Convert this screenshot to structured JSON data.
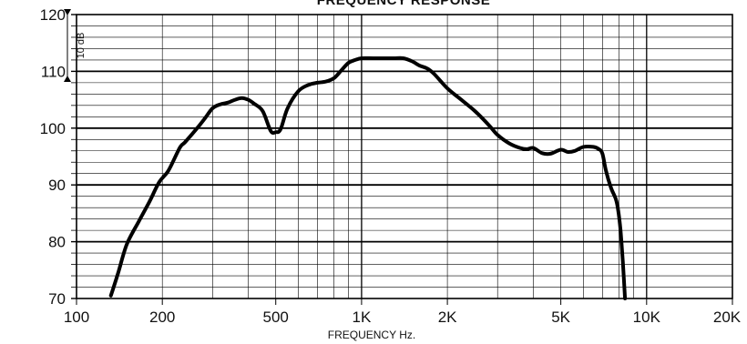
{
  "chart_data": {
    "type": "line",
    "title": "FREQUENCY RESPONSE",
    "xlabel": "FREQUENCY  Hz.",
    "ylabel": "",
    "x_scale": "log",
    "xlim": [
      100,
      20000
    ],
    "ylim": [
      70,
      120
    ],
    "x_ticks": [
      100,
      200,
      500,
      1000,
      2000,
      5000,
      10000,
      20000
    ],
    "x_tick_labels": [
      "100",
      "200",
      "500",
      "1K",
      "2K",
      "5K",
      "10K",
      "20K"
    ],
    "y_ticks": [
      70,
      80,
      90,
      100,
      110,
      120
    ],
    "y_tick_labels": [
      "70",
      "80",
      "90",
      "100",
      "110",
      "120"
    ],
    "scale_marker": "10 dB",
    "grid": true,
    "series": [
      {
        "x": [
          132,
          140,
          150,
          165,
          180,
          195,
          210,
          230,
          240,
          260,
          280,
          300,
          320,
          340,
          360,
          380,
          400,
          420,
          450,
          480,
          500,
          520,
          550,
          600,
          650,
          700,
          750,
          800,
          850,
          900,
          950,
          1000,
          1100,
          1200,
          1300,
          1400,
          1500,
          1600,
          1700,
          1800,
          2000,
          2200,
          2500,
          2800,
          3000,
          3300,
          3600,
          3800,
          4000,
          4300,
          4600,
          5000,
          5300,
          5600,
          6000,
          6500,
          6800,
          7000,
          7200,
          7500,
          7800,
          7950,
          8100,
          8250,
          8400
        ],
        "y": [
          70.5,
          74.5,
          79.5,
          83.5,
          87.0,
          90.5,
          92.5,
          96.5,
          97.5,
          99.5,
          101.5,
          103.5,
          104.2,
          104.5,
          105.0,
          105.3,
          105.0,
          104.3,
          103.0,
          99.5,
          99.3,
          99.8,
          103.5,
          106.5,
          107.6,
          108.0,
          108.2,
          108.8,
          110.2,
          111.5,
          112.0,
          112.3,
          112.3,
          112.3,
          112.3,
          112.3,
          111.8,
          111.0,
          110.5,
          109.5,
          107.0,
          105.3,
          103.0,
          100.5,
          98.8,
          97.3,
          96.5,
          96.3,
          96.5,
          95.6,
          95.5,
          96.2,
          95.8,
          96.0,
          96.7,
          96.7,
          96.3,
          95.5,
          92.5,
          89.5,
          87.5,
          85.5,
          82.0,
          76.5,
          70.0
        ]
      }
    ]
  }
}
